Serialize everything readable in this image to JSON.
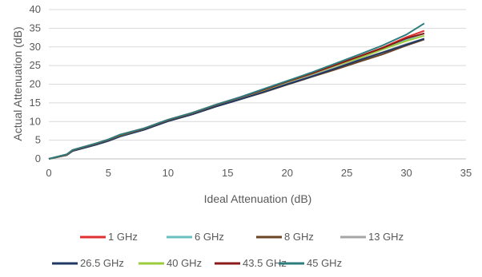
{
  "chart_data": {
    "type": "line",
    "title": "",
    "xlabel": "Ideal Attenuation (dB)",
    "ylabel": "Actual Attenuation (dB)",
    "xlim": [
      0,
      35
    ],
    "ylim": [
      0,
      40
    ],
    "xticks": [
      0,
      5,
      10,
      15,
      20,
      25,
      30,
      35
    ],
    "yticks": [
      0,
      5,
      10,
      15,
      20,
      25,
      30,
      35,
      40
    ],
    "grid": "horizontal",
    "legend_position": "bottom",
    "x": [
      0,
      1.5,
      2,
      4,
      5,
      6,
      8,
      10,
      12,
      14,
      16,
      18,
      20,
      22,
      24,
      26,
      28,
      30,
      31.5
    ],
    "series": [
      {
        "name": "1 GHz",
        "color": "#e03030",
        "values": [
          0,
          1.2,
          2.4,
          4.2,
          5.2,
          6.5,
          8.2,
          10.5,
          12.3,
          14.5,
          16.5,
          18.5,
          20.7,
          22.9,
          25.2,
          27.4,
          29.8,
          32.6,
          34.3
        ]
      },
      {
        "name": "6 GHz",
        "color": "#6bbfbf",
        "values": [
          0,
          1.1,
          2.3,
          4.0,
          5.0,
          6.3,
          8.0,
          10.3,
          12.1,
          14.3,
          16.3,
          18.3,
          20.5,
          22.6,
          24.9,
          27.2,
          29.5,
          32.0,
          33.6
        ]
      },
      {
        "name": "8 GHz",
        "color": "#6b4423",
        "values": [
          0,
          1.0,
          2.2,
          3.9,
          4.9,
          6.1,
          7.9,
          10.1,
          11.9,
          14.0,
          15.9,
          17.8,
          19.9,
          21.9,
          23.9,
          26.0,
          28.0,
          30.4,
          32.0
        ]
      },
      {
        "name": "13 GHz",
        "color": "#a6a6a6",
        "values": [
          0,
          1.0,
          2.2,
          3.9,
          4.9,
          6.1,
          7.9,
          10.2,
          12.0,
          14.1,
          16.1,
          18.0,
          20.1,
          22.2,
          24.4,
          26.6,
          28.6,
          30.8,
          32.2
        ]
      },
      {
        "name": "26.5 GHz",
        "color": "#1f3864",
        "values": [
          0,
          1.0,
          2.1,
          3.8,
          4.8,
          6.0,
          7.8,
          10.1,
          11.9,
          14.0,
          15.9,
          17.9,
          20.0,
          22.0,
          24.2,
          26.4,
          28.5,
          30.6,
          32.2
        ]
      },
      {
        "name": "40 GHz",
        "color": "#9bcc3c",
        "values": [
          0,
          1.1,
          2.3,
          4.1,
          5.1,
          6.3,
          8.1,
          10.4,
          12.2,
          14.4,
          16.4,
          18.4,
          20.6,
          22.7,
          24.9,
          27.0,
          29.3,
          31.6,
          33.0
        ]
      },
      {
        "name": "43.5 GHz",
        "color": "#8b1a1a",
        "values": [
          0,
          1.1,
          2.3,
          4.1,
          5.1,
          6.4,
          8.1,
          10.4,
          12.2,
          14.4,
          16.4,
          18.5,
          20.7,
          22.8,
          25.1,
          27.4,
          29.7,
          32.3,
          33.6
        ]
      },
      {
        "name": "45 GHz",
        "color": "#2e7d7d",
        "values": [
          0,
          1.2,
          2.4,
          4.2,
          5.2,
          6.5,
          8.2,
          10.5,
          12.3,
          14.5,
          16.5,
          18.7,
          20.9,
          23.1,
          25.5,
          27.9,
          30.4,
          33.3,
          36.3
        ]
      }
    ]
  }
}
